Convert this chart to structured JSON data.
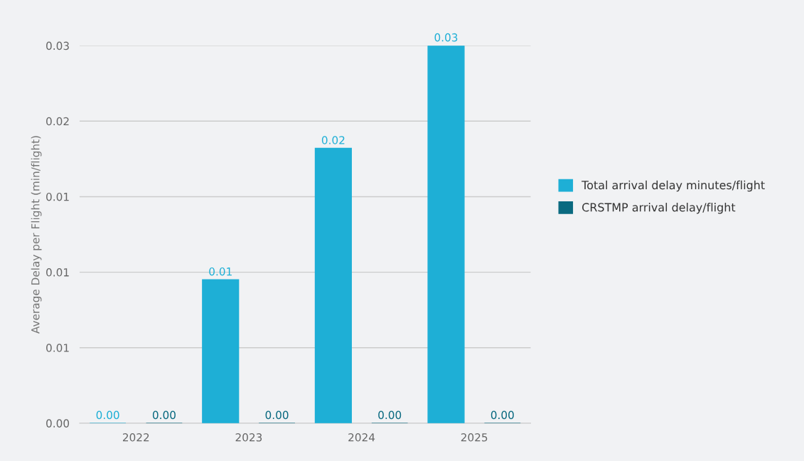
{
  "chart_data": {
    "type": "bar",
    "ylabel": "Average Delay per Flight (min/flight)",
    "categories": [
      "2022",
      "2023",
      "2024",
      "2025"
    ],
    "series": [
      {
        "name": "Total arrival delay minutes/flight",
        "color": "#1eafd6",
        "values": [
          0,
          0.0095,
          0.0182,
          0.025
        ],
        "value_labels": [
          "0.00",
          "0.01",
          "0.02",
          "0.03"
        ]
      },
      {
        "name": "CRSTMP arrival delay/flight",
        "color": "#0a6a80",
        "values": [
          0,
          0,
          0,
          0
        ],
        "value_labels": [
          "0.00",
          "0.00",
          "0.00",
          "0.00"
        ]
      }
    ],
    "ylim": [
      0,
      0.025
    ],
    "yticks": [
      {
        "value": 0,
        "label": "0.00"
      },
      {
        "value": 0.005,
        "label": "0.01"
      },
      {
        "value": 0.01,
        "label": "0.01"
      },
      {
        "value": 0.015,
        "label": "0.01"
      },
      {
        "value": 0.02,
        "label": "0.02"
      },
      {
        "value": 0.025,
        "label": "0.03"
      }
    ],
    "grid": "y",
    "legend": "right"
  }
}
